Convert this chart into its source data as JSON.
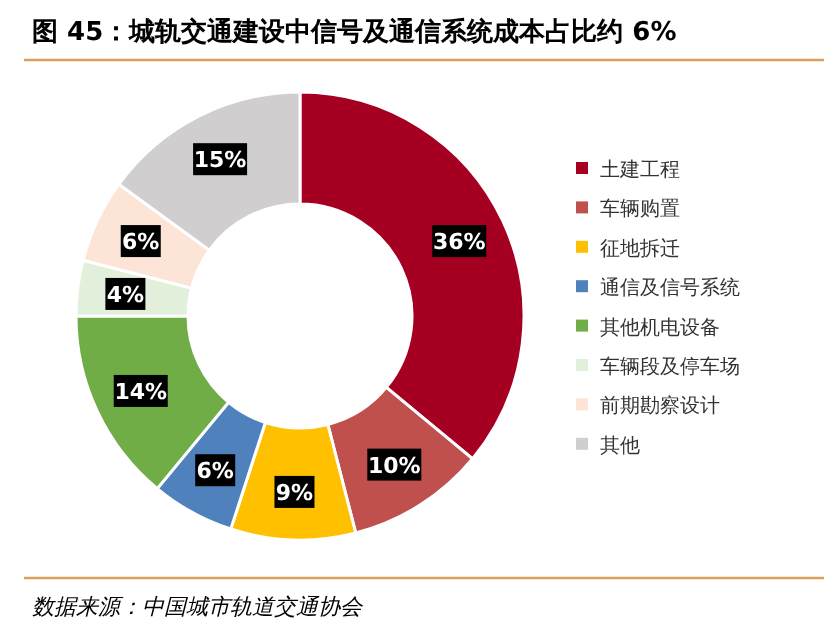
{
  "chart_data": {
    "type": "donut",
    "title": "图 45：城轨交通建设中信号及通信系统成本占比约 6%",
    "categories": [
      "土建工程",
      "车辆购置",
      "征地拆迁",
      "通信及信号系统",
      "其他机电设备",
      "车辆段及停车场",
      "前期勘察设计",
      "其他"
    ],
    "values": [
      36,
      10,
      9,
      6,
      14,
      4,
      6,
      15
    ],
    "colors": [
      "#a50021",
      "#c0504d",
      "#ffc000",
      "#4f81bd",
      "#70ad47",
      "#e2efda",
      "#fce4d6",
      "#d0cece"
    ],
    "value_labels": [
      "36%",
      "10%",
      "9%",
      "6%",
      "14%",
      "4%",
      "6%",
      "15%"
    ],
    "legend": "right",
    "annotations": [
      "数据来源：中国城市轨道交通协会"
    ]
  }
}
